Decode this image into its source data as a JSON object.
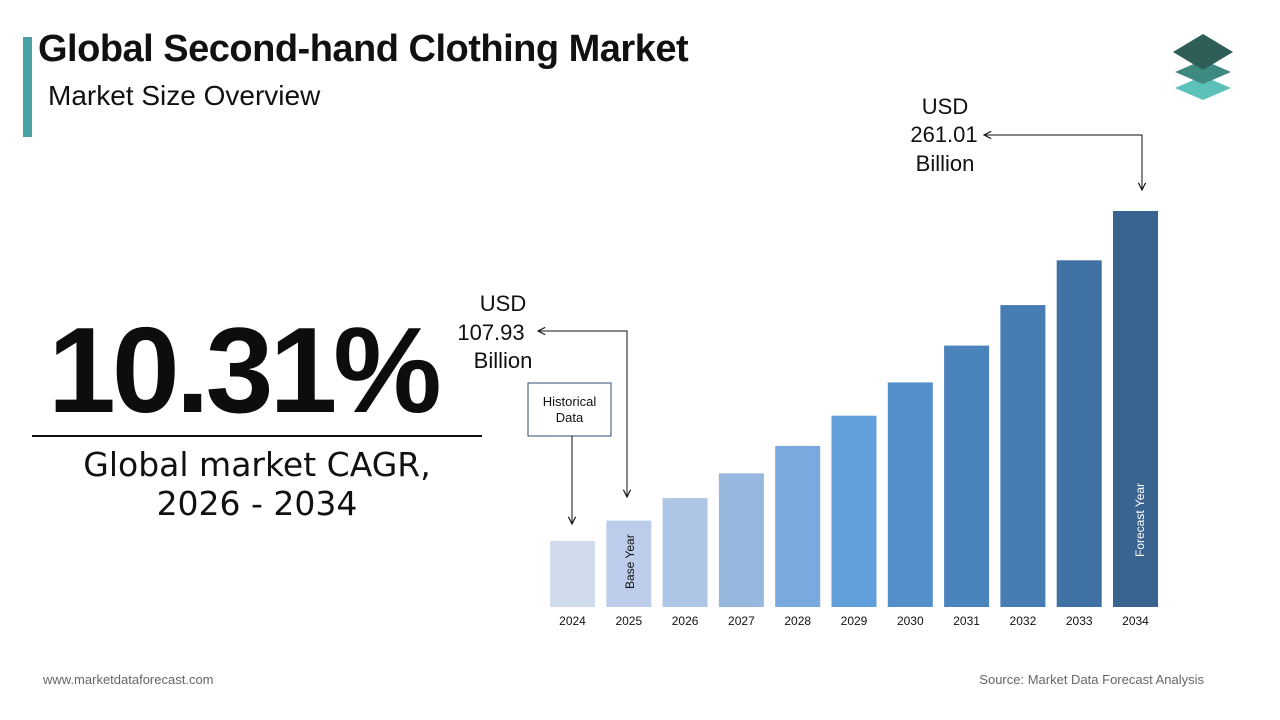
{
  "header": {
    "title": "Global Second-hand Clothing Market",
    "subtitle": "Market Size Overview"
  },
  "logo": {
    "icon": "stacked-layers-icon",
    "colors": [
      "#2f5d57",
      "#3f8a80",
      "#5cc1b8"
    ]
  },
  "kpi": {
    "value": "10.31%",
    "label_line1": "Global market CAGR,",
    "label_line2": "2026 - 2034"
  },
  "chart_data": {
    "type": "bar",
    "categories": [
      "2024",
      "2025",
      "2026",
      "2027",
      "2028",
      "2029",
      "2030",
      "2031",
      "2032",
      "2033",
      "2034"
    ],
    "values": [
      97.85,
      107.93,
      119.06,
      131.33,
      144.87,
      159.81,
      176.28,
      194.46,
      214.5,
      236.62,
      261.01
    ],
    "unit": "USD Billion",
    "colors": [
      "#d0dcee",
      "#bccdeb",
      "#adc6e6",
      "#97b8de",
      "#79a9df",
      "#609fd9",
      "#5390cb",
      "#4b84bc",
      "#467cb2",
      "#3f71a5",
      "#3a6490"
    ],
    "annotations": {
      "historical": {
        "line1": "Historical",
        "line2": "Data"
      },
      "base_year": "Base Year",
      "forecast_year": "Forecast Year",
      "start_value": {
        "line1": "USD",
        "line2": "107.93",
        "line3": "Billion"
      },
      "end_value": {
        "line1": "USD",
        "line2": "261.01",
        "line3": "Billion"
      }
    }
  },
  "footer": {
    "website": "www.marketdataforecast.com",
    "source": "Source: Market Data Forecast Analysis"
  }
}
